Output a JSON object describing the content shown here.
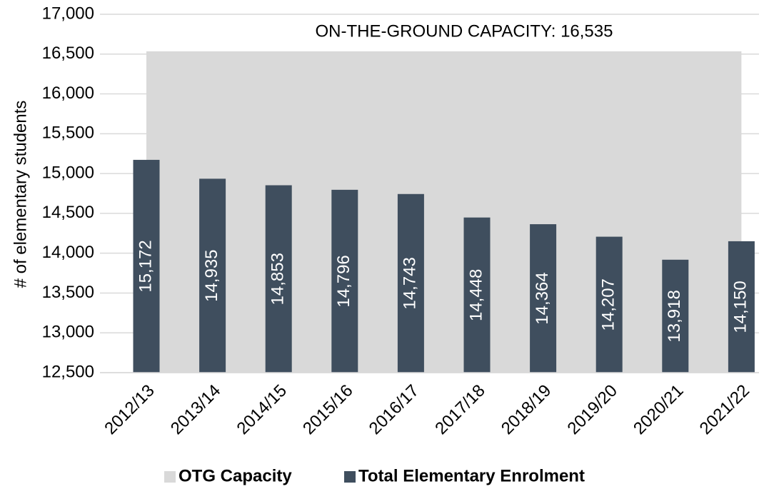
{
  "chart_data": {
    "type": "bar",
    "y_label": "# of elementary students",
    "annotation": "ON-THE-GROUND CAPACITY: 16,535",
    "categories": [
      "2012/13",
      "2013/14",
      "2014/15",
      "2015/16",
      "2016/17",
      "2017/18",
      "2018/19",
      "2019/20",
      "2020/21",
      "2021/22"
    ],
    "series": [
      {
        "name": "OTG Capacity",
        "kind": "area",
        "color": "#d9d9d9",
        "values": [
          16535,
          16535,
          16535,
          16535,
          16535,
          16535,
          16535,
          16535,
          16535,
          16535
        ]
      },
      {
        "name": "Total Elementary Enrolment",
        "kind": "bar",
        "color": "#3f4e5e",
        "values": [
          15172,
          14935,
          14853,
          14796,
          14743,
          14448,
          14364,
          14207,
          13918,
          14150
        ],
        "value_labels": [
          "15,172",
          "14,935",
          "14,853",
          "14,796",
          "14,743",
          "14,448",
          "14,364",
          "14,207",
          "13,918",
          "14,150"
        ]
      }
    ],
    "ylim": [
      12500,
      17000
    ],
    "yticks": [
      {
        "value": 12500,
        "label": "12,500"
      },
      {
        "value": 13000,
        "label": "13,000"
      },
      {
        "value": 13500,
        "label": "13,500"
      },
      {
        "value": 14000,
        "label": "14,000"
      },
      {
        "value": 14500,
        "label": "14,500"
      },
      {
        "value": 15000,
        "label": "15,000"
      },
      {
        "value": 15500,
        "label": "15,500"
      },
      {
        "value": 16000,
        "label": "16,000"
      },
      {
        "value": 16500,
        "label": "16,500"
      },
      {
        "value": 17000,
        "label": "17,000"
      }
    ],
    "grid": true,
    "legend": "bottom"
  }
}
